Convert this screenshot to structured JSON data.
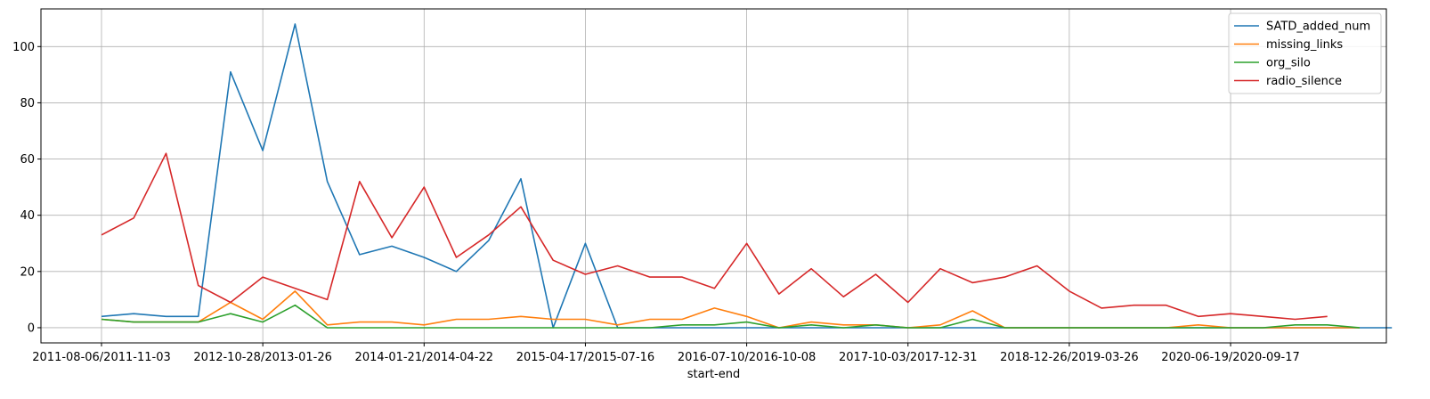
{
  "chart_data": {
    "type": "line",
    "xlabel": "start-end",
    "ylabel": "",
    "ylim": [
      -5.4,
      113.4
    ],
    "yticks": [
      0,
      20,
      40,
      60,
      80,
      100
    ],
    "grid": true,
    "legend_position": "top-right",
    "xtick_labels": [
      {
        "index": 0,
        "label": "2011-08-06/2011-11-03"
      },
      {
        "index": 5,
        "label": "2012-10-28/2013-01-26"
      },
      {
        "index": 10,
        "label": "2014-01-21/2014-04-22"
      },
      {
        "index": 15,
        "label": "2015-04-17/2015-07-16"
      },
      {
        "index": 20,
        "label": "2016-07-10/2016-10-08"
      },
      {
        "index": 25,
        "label": "2017-10-03/2017-12-31"
      },
      {
        "index": 30,
        "label": "2018-12-26/2019-03-26"
      },
      {
        "index": 35,
        "label": "2020-06-19/2020-09-17"
      }
    ],
    "series": [
      {
        "name": "SATD_added_num",
        "color": "#1f77b4",
        "values": [
          4,
          5,
          4,
          4,
          91,
          63,
          108,
          52,
          26,
          29,
          25,
          20,
          31,
          53,
          0,
          30,
          0,
          0,
          0,
          0,
          0,
          0,
          0,
          0,
          0,
          0,
          0,
          0,
          0,
          0,
          0,
          0,
          0,
          0,
          0,
          0,
          0,
          0,
          0,
          0,
          0
        ]
      },
      {
        "name": "missing_links",
        "color": "#ff7f0e",
        "values": [
          3,
          2,
          2,
          2,
          9,
          3,
          13,
          1,
          2,
          2,
          1,
          3,
          3,
          4,
          3,
          3,
          1,
          3,
          3,
          7,
          4,
          0,
          2,
          1,
          1,
          0,
          1,
          6,
          0,
          0,
          0,
          0,
          0,
          0,
          1,
          0,
          0,
          0,
          0,
          0
        ]
      },
      {
        "name": "org_silo",
        "color": "#2ca02c",
        "values": [
          3,
          2,
          2,
          2,
          5,
          2,
          8,
          0,
          0,
          0,
          0,
          0,
          0,
          0,
          0,
          0,
          0,
          0,
          1,
          1,
          2,
          0,
          1,
          0,
          1,
          0,
          0,
          3,
          0,
          0,
          0,
          0,
          0,
          0,
          0,
          0,
          0,
          1,
          1,
          0
        ]
      },
      {
        "name": "radio_silence",
        "color": "#d62728",
        "values": [
          33,
          39,
          62,
          15,
          9,
          18,
          14,
          10,
          52,
          32,
          50,
          25,
          33,
          43,
          24,
          19,
          22,
          18,
          18,
          14,
          30,
          12,
          21,
          11,
          19,
          9,
          21,
          16,
          18,
          22,
          13,
          7,
          8,
          8,
          4,
          5,
          4,
          3,
          4
        ]
      }
    ]
  }
}
